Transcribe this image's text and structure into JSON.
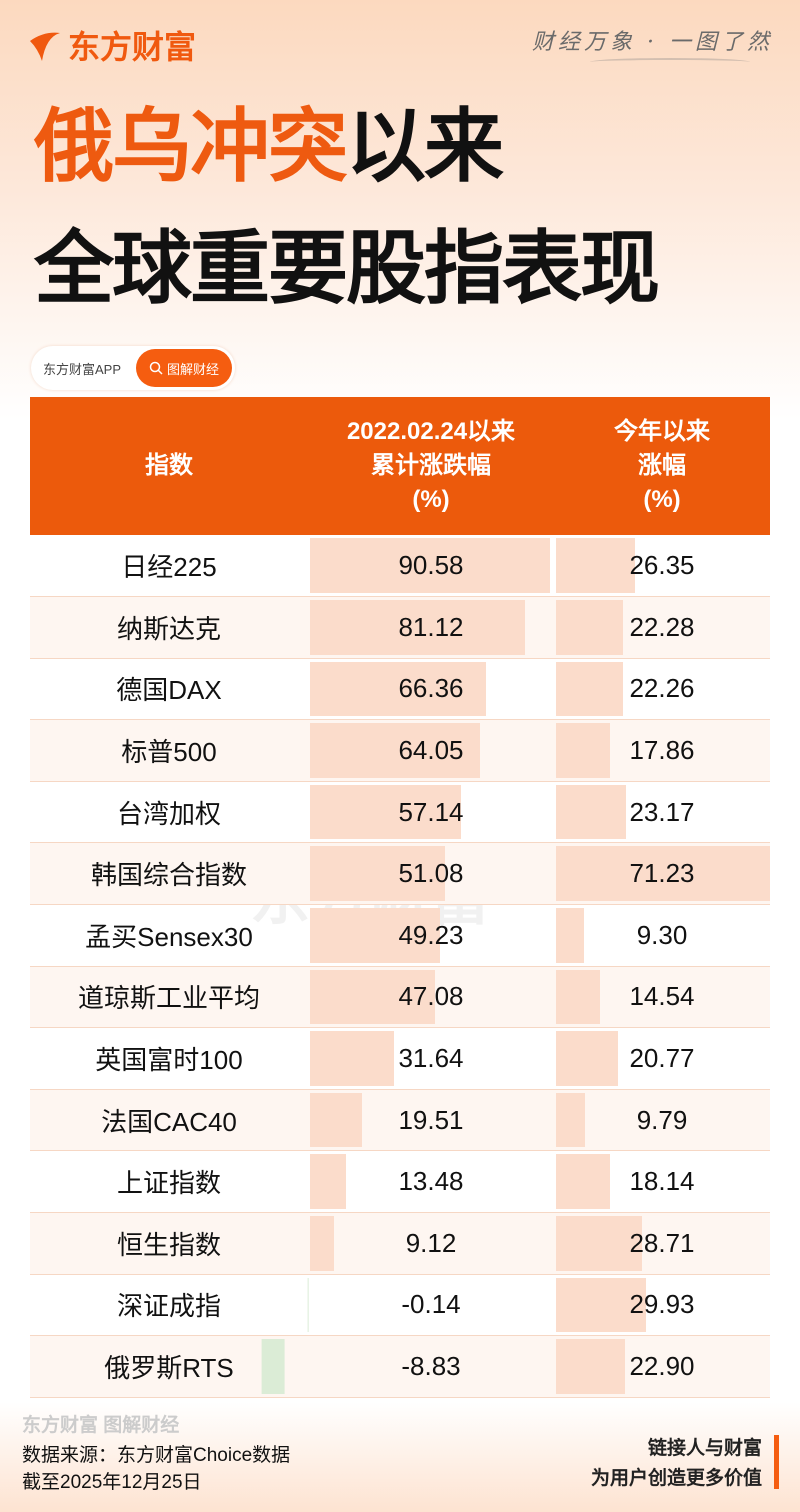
{
  "brand": {
    "logo": "东方财富",
    "slogan": "财经万象 · 一图了然"
  },
  "title": {
    "line1_orange": "俄乌冲突",
    "line1_black": "以来",
    "line2": "全球重要股指表现"
  },
  "pill": {
    "app": "东方财富APP",
    "search": "图解财经"
  },
  "colors": {
    "accent": "#ec5a0c",
    "positive_bar": "#fbdccb",
    "negative_bar": "#dbecd6"
  },
  "chart_data": {
    "type": "table",
    "columns": [
      "指数",
      "2022.02.24以来\n累计涨跌幅\n(%)",
      "今年以来\n涨幅\n(%)"
    ],
    "header": {
      "c1": "指数",
      "c2a": "2022.02.24以来",
      "c2b": "累计涨跌幅",
      "c2c": "(%)",
      "c3a": "今年以来",
      "c3b": "涨幅",
      "c3c": "(%)"
    },
    "rows": [
      {
        "name": "日经225",
        "since": "90.58",
        "ytd": "26.35"
      },
      {
        "name": "纳斯达克",
        "since": "81.12",
        "ytd": "22.28"
      },
      {
        "name": "德国DAX",
        "since": "66.36",
        "ytd": "22.26"
      },
      {
        "name": "标普500",
        "since": "64.05",
        "ytd": "17.86"
      },
      {
        "name": "台湾加权",
        "since": "57.14",
        "ytd": "23.17"
      },
      {
        "name": "韩国综合指数",
        "since": "51.08",
        "ytd": "71.23"
      },
      {
        "name": "孟买Sensex30",
        "since": "49.23",
        "ytd": "9.30"
      },
      {
        "name": "道琼斯工业平均",
        "since": "47.08",
        "ytd": "14.54"
      },
      {
        "name": "英国富时100",
        "since": "31.64",
        "ytd": "20.77"
      },
      {
        "name": "法国CAC40",
        "since": "19.51",
        "ytd": "9.79"
      },
      {
        "name": "上证指数",
        "since": "13.48",
        "ytd": "18.14"
      },
      {
        "name": "恒生指数",
        "since": "9.12",
        "ytd": "28.71"
      },
      {
        "name": "深证成指",
        "since": "-0.14",
        "ytd": "29.93"
      },
      {
        "name": "俄罗斯RTS",
        "since": "-8.83",
        "ytd": "22.90"
      }
    ]
  },
  "footer": {
    "logo": "东方财富 图解财经",
    "source": "数据来源：东方财富Choice数据",
    "date": "截至2025年12月25日",
    "tag1": "链接人与财富",
    "tag2": "为用户创造更多价值"
  }
}
